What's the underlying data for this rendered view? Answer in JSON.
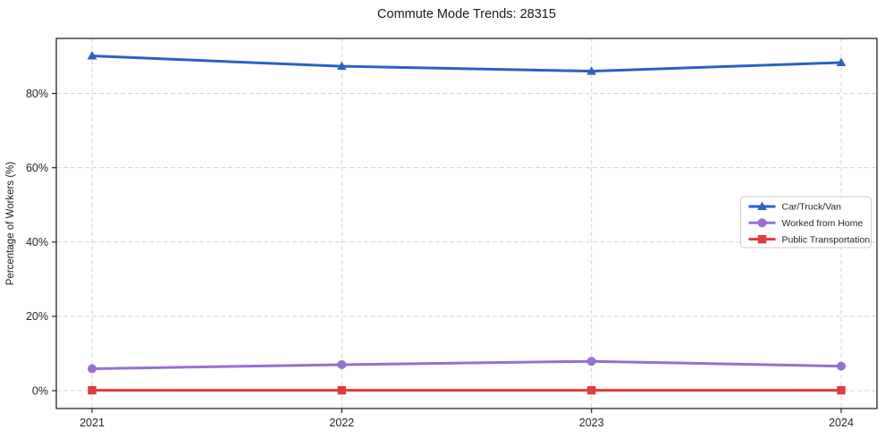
{
  "chart_data": {
    "type": "line",
    "title": "Commute Mode Trends: 28315",
    "xlabel": "",
    "ylabel": "Percentage of Workers (%)",
    "categories": [
      "2021",
      "2022",
      "2023",
      "2024"
    ],
    "series": [
      {
        "name": "Car/Truck/Van",
        "color": "#2b62c2",
        "marker": "triangle",
        "values": [
          90.1,
          87.3,
          86.0,
          88.3
        ]
      },
      {
        "name": "Worked from Home",
        "color": "#9770d2",
        "marker": "circle",
        "values": [
          5.9,
          7.0,
          7.9,
          6.6
        ]
      },
      {
        "name": "Public Transportation",
        "color": "#e23b3f",
        "marker": "square",
        "values": [
          0.1,
          0.1,
          0.1,
          0.1
        ]
      }
    ],
    "yticks": [
      0,
      20,
      40,
      60,
      80
    ],
    "ytick_suffix": "%",
    "ylim": [
      -4.8,
      94.8
    ],
    "grid": true,
    "grid_color": "#d4d4d4",
    "spine_color": "#262626",
    "legend_position": "right-middle",
    "background_color": "#ffffff"
  }
}
